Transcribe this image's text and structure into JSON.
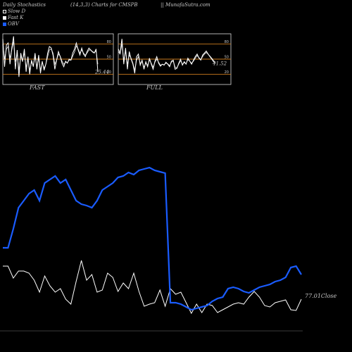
{
  "header": {
    "title": "Daily Stochastics",
    "params": "(14,3,3) Charts for CMSPB",
    "site": "|| MunafaSutra.com"
  },
  "legend": [
    {
      "label": "Slow D",
      "color": "#ffffff",
      "style": "outline"
    },
    {
      "label": "Fast K",
      "color": "#ffffff",
      "style": "filled"
    },
    {
      "label": "OBV",
      "color": "#1a5cff",
      "style": "filled"
    }
  ],
  "colors": {
    "background": "#000000",
    "band": "#c87a1e",
    "stoch_line": "#ffffff",
    "obv": "#1a5cff",
    "close": "#ffffff",
    "frame": "#dddddd"
  },
  "chart_data": [
    {
      "type": "line",
      "name": "FAST",
      "label": "FAST",
      "y_ticks": [
        80,
        50,
        20
      ],
      "bands": [
        80,
        50,
        20
      ],
      "ylim": [
        0,
        100
      ],
      "last_value_label": "25.44",
      "series": [
        {
          "name": "Fast K",
          "values": [
            90,
            35,
            78,
            82,
            40,
            72,
            95,
            30,
            68,
            15,
            62,
            45,
            70,
            25,
            55,
            20,
            48,
            35,
            62,
            30,
            58,
            22,
            46,
            28,
            40,
            62,
            75,
            72,
            58,
            30,
            48,
            65,
            55,
            42,
            35,
            46,
            42,
            50,
            48,
            62,
            70,
            82,
            68,
            58,
            72,
            60,
            55,
            65,
            72,
            68,
            64,
            62,
            70,
            25
          ]
        },
        {
          "name": "Slow D",
          "values": [
            80,
            50,
            70,
            75,
            52,
            68,
            85,
            45,
            60,
            28,
            55,
            48,
            62,
            34,
            50,
            28,
            44,
            38,
            55,
            35,
            52,
            28,
            44,
            32,
            40,
            55,
            68,
            70,
            62,
            40,
            48,
            60,
            56,
            46,
            40,
            44,
            43,
            48,
            48,
            56,
            64,
            76,
            70,
            62,
            68,
            62,
            58,
            62,
            68,
            68,
            65,
            63,
            66,
            40
          ]
        }
      ]
    },
    {
      "type": "line",
      "name": "FULL",
      "label": "FULL",
      "y_ticks": [
        80,
        50,
        20
      ],
      "bands": [
        80,
        50,
        20
      ],
      "ylim": [
        0,
        100
      ],
      "last_value_label": "41.52",
      "series": [
        {
          "name": "Fast K",
          "values": [
            70,
            62,
            90,
            40,
            72,
            30,
            65,
            50,
            40,
            22,
            55,
            60,
            38,
            48,
            30,
            45,
            35,
            52,
            40,
            30,
            46,
            55,
            42,
            36,
            40,
            38,
            44,
            40,
            35,
            46,
            48,
            30,
            32,
            42,
            50,
            38,
            45,
            40,
            52,
            46,
            40,
            48,
            55,
            60,
            52,
            48,
            58,
            62,
            66,
            60,
            55,
            50,
            45,
            42
          ]
        },
        {
          "name": "Slow D",
          "values": [
            65,
            60,
            80,
            48,
            65,
            40,
            58,
            52,
            42,
            28,
            48,
            55,
            42,
            45,
            34,
            42,
            38,
            48,
            42,
            34,
            44,
            50,
            44,
            38,
            40,
            39,
            42,
            41,
            37,
            44,
            46,
            34,
            33,
            40,
            47,
            40,
            43,
            41,
            49,
            46,
            42,
            46,
            52,
            57,
            53,
            49,
            55,
            60,
            63,
            60,
            56,
            52,
            47,
            44
          ]
        }
      ]
    },
    {
      "type": "line",
      "name": "Price and OBV",
      "close_label": "77.01Close",
      "series": [
        {
          "name": "Close",
          "values": [
            92,
            92,
            75,
            85,
            85,
            82,
            72,
            55,
            78,
            64,
            55,
            60,
            45,
            38,
            70,
            100,
            72,
            80,
            55,
            58,
            82,
            76,
            56,
            68,
            60,
            82,
            56,
            35,
            38,
            40,
            58,
            35,
            60,
            52,
            55,
            40,
            25,
            38,
            26,
            38,
            36,
            26,
            30,
            34,
            38,
            40,
            38,
            48,
            56,
            48,
            36,
            34,
            40,
            42,
            44,
            30,
            29,
            45
          ]
        },
        {
          "name": "OBV",
          "values": [
            118,
            118,
            145,
            175,
            185,
            195,
            200,
            185,
            210,
            215,
            220,
            210,
            215,
            200,
            185,
            180,
            178,
            175,
            185,
            200,
            205,
            210,
            218,
            220,
            225,
            222,
            228,
            230,
            232,
            228,
            226,
            224,
            40,
            40,
            38,
            34,
            30,
            32,
            34,
            36,
            42,
            46,
            48,
            60,
            62,
            60,
            56,
            54,
            58,
            62,
            64,
            66,
            70,
            72,
            76,
            90,
            92,
            80
          ]
        }
      ]
    }
  ]
}
